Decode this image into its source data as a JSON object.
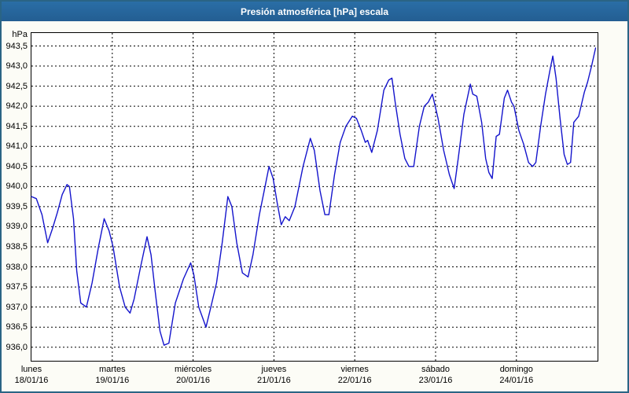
{
  "colors": {
    "title_bar": "#2a6ea6",
    "title_bar_dark": "#235e92",
    "title_text": "#ffffff",
    "line": "#1414cc",
    "grid": "#000000",
    "plot_bg": "#ffffff",
    "window_bg": "#fcfcf6",
    "window_border": "#2a6485"
  },
  "chart_data": {
    "type": "line",
    "title": "Presión atmosférica [hPa] escala",
    "ylabel_unit": "hPa",
    "ylim": [
      936.0,
      943.5
    ],
    "y_step": 0.5,
    "y_tick_labels": [
      "943,5",
      "943,0",
      "942,5",
      "942,0",
      "941,5",
      "941,0",
      "940,5",
      "940,0",
      "939,5",
      "939,0",
      "938,5",
      "938,0",
      "937,5",
      "937,0",
      "936,5",
      "936,0"
    ],
    "x_days": [
      {
        "name": "lunes",
        "date": "18/01/16"
      },
      {
        "name": "martes",
        "date": "19/01/16"
      },
      {
        "name": "miércoles",
        "date": "20/01/16"
      },
      {
        "name": "jueves",
        "date": "21/01/16"
      },
      {
        "name": "viernes",
        "date": "22/01/16"
      },
      {
        "name": "sábado",
        "date": "23/01/16"
      },
      {
        "name": "domingo",
        "date": "24/01/16"
      }
    ],
    "grid": "dashed, both axes, full plot",
    "legend": "none",
    "series": [
      {
        "name": "Presión atmosférica",
        "units": "hPa",
        "x_units": "days since 18/01/16 00:00",
        "points": [
          [
            0.0,
            939.75
          ],
          [
            0.06,
            939.7
          ],
          [
            0.13,
            939.3
          ],
          [
            0.2,
            938.6
          ],
          [
            0.26,
            938.95
          ],
          [
            0.32,
            939.35
          ],
          [
            0.38,
            939.8
          ],
          [
            0.44,
            940.05
          ],
          [
            0.47,
            940.0
          ],
          [
            0.52,
            939.2
          ],
          [
            0.56,
            937.9
          ],
          [
            0.61,
            937.1
          ],
          [
            0.68,
            937.0
          ],
          [
            0.75,
            937.6
          ],
          [
            0.83,
            938.5
          ],
          [
            0.9,
            939.2
          ],
          [
            0.96,
            938.9
          ],
          [
            1.01,
            938.5
          ],
          [
            1.09,
            937.5
          ],
          [
            1.16,
            937.0
          ],
          [
            1.22,
            936.85
          ],
          [
            1.27,
            937.2
          ],
          [
            1.35,
            938.0
          ],
          [
            1.43,
            938.75
          ],
          [
            1.48,
            938.3
          ],
          [
            1.53,
            937.4
          ],
          [
            1.59,
            936.4
          ],
          [
            1.64,
            936.05
          ],
          [
            1.7,
            936.1
          ],
          [
            1.78,
            937.1
          ],
          [
            1.88,
            937.7
          ],
          [
            1.97,
            938.1
          ],
          [
            2.01,
            937.8
          ],
          [
            2.07,
            937.0
          ],
          [
            2.16,
            936.5
          ],
          [
            2.22,
            937.0
          ],
          [
            2.29,
            937.6
          ],
          [
            2.36,
            938.6
          ],
          [
            2.43,
            939.75
          ],
          [
            2.48,
            939.5
          ],
          [
            2.54,
            938.6
          ],
          [
            2.61,
            937.85
          ],
          [
            2.68,
            937.75
          ],
          [
            2.74,
            938.3
          ],
          [
            2.82,
            939.3
          ],
          [
            2.89,
            940.0
          ],
          [
            2.94,
            940.5
          ],
          [
            2.99,
            940.2
          ],
          [
            3.04,
            939.6
          ],
          [
            3.09,
            939.05
          ],
          [
            3.14,
            939.25
          ],
          [
            3.19,
            939.15
          ],
          [
            3.26,
            939.5
          ],
          [
            3.36,
            940.5
          ],
          [
            3.45,
            941.2
          ],
          [
            3.5,
            940.9
          ],
          [
            3.57,
            939.9
          ],
          [
            3.63,
            939.3
          ],
          [
            3.68,
            939.3
          ],
          [
            3.75,
            940.3
          ],
          [
            3.82,
            941.1
          ],
          [
            3.89,
            941.5
          ],
          [
            3.97,
            941.75
          ],
          [
            4.02,
            941.7
          ],
          [
            4.08,
            941.4
          ],
          [
            4.13,
            941.1
          ],
          [
            4.16,
            941.15
          ],
          [
            4.21,
            940.85
          ],
          [
            4.28,
            941.4
          ],
          [
            4.36,
            942.4
          ],
          [
            4.42,
            942.65
          ],
          [
            4.46,
            942.7
          ],
          [
            4.5,
            942.1
          ],
          [
            4.56,
            941.3
          ],
          [
            4.62,
            940.7
          ],
          [
            4.67,
            940.5
          ],
          [
            4.73,
            940.5
          ],
          [
            4.8,
            941.5
          ],
          [
            4.86,
            942.0
          ],
          [
            4.91,
            942.1
          ],
          [
            4.96,
            942.3
          ],
          [
            5.03,
            941.7
          ],
          [
            5.1,
            940.9
          ],
          [
            5.17,
            940.3
          ],
          [
            5.23,
            939.95
          ],
          [
            5.28,
            940.7
          ],
          [
            5.35,
            941.8
          ],
          [
            5.43,
            942.55
          ],
          [
            5.46,
            942.3
          ],
          [
            5.51,
            942.25
          ],
          [
            5.57,
            941.6
          ],
          [
            5.62,
            940.7
          ],
          [
            5.66,
            940.35
          ],
          [
            5.7,
            940.2
          ],
          [
            5.75,
            941.25
          ],
          [
            5.79,
            941.3
          ],
          [
            5.85,
            942.2
          ],
          [
            5.89,
            942.4
          ],
          [
            5.94,
            942.1
          ],
          [
            5.97,
            942.0
          ],
          [
            6.03,
            941.4
          ],
          [
            6.09,
            941.05
          ],
          [
            6.15,
            940.6
          ],
          [
            6.2,
            940.5
          ],
          [
            6.24,
            940.6
          ],
          [
            6.3,
            941.5
          ],
          [
            6.36,
            942.3
          ],
          [
            6.42,
            942.95
          ],
          [
            6.45,
            943.25
          ],
          [
            6.49,
            942.7
          ],
          [
            6.54,
            941.7
          ],
          [
            6.59,
            940.8
          ],
          [
            6.63,
            940.55
          ],
          [
            6.67,
            940.6
          ],
          [
            6.71,
            941.6
          ],
          [
            6.77,
            941.75
          ],
          [
            6.84,
            942.35
          ],
          [
            6.88,
            942.6
          ],
          [
            6.93,
            943.0
          ],
          [
            6.98,
            943.45
          ]
        ]
      }
    ]
  }
}
